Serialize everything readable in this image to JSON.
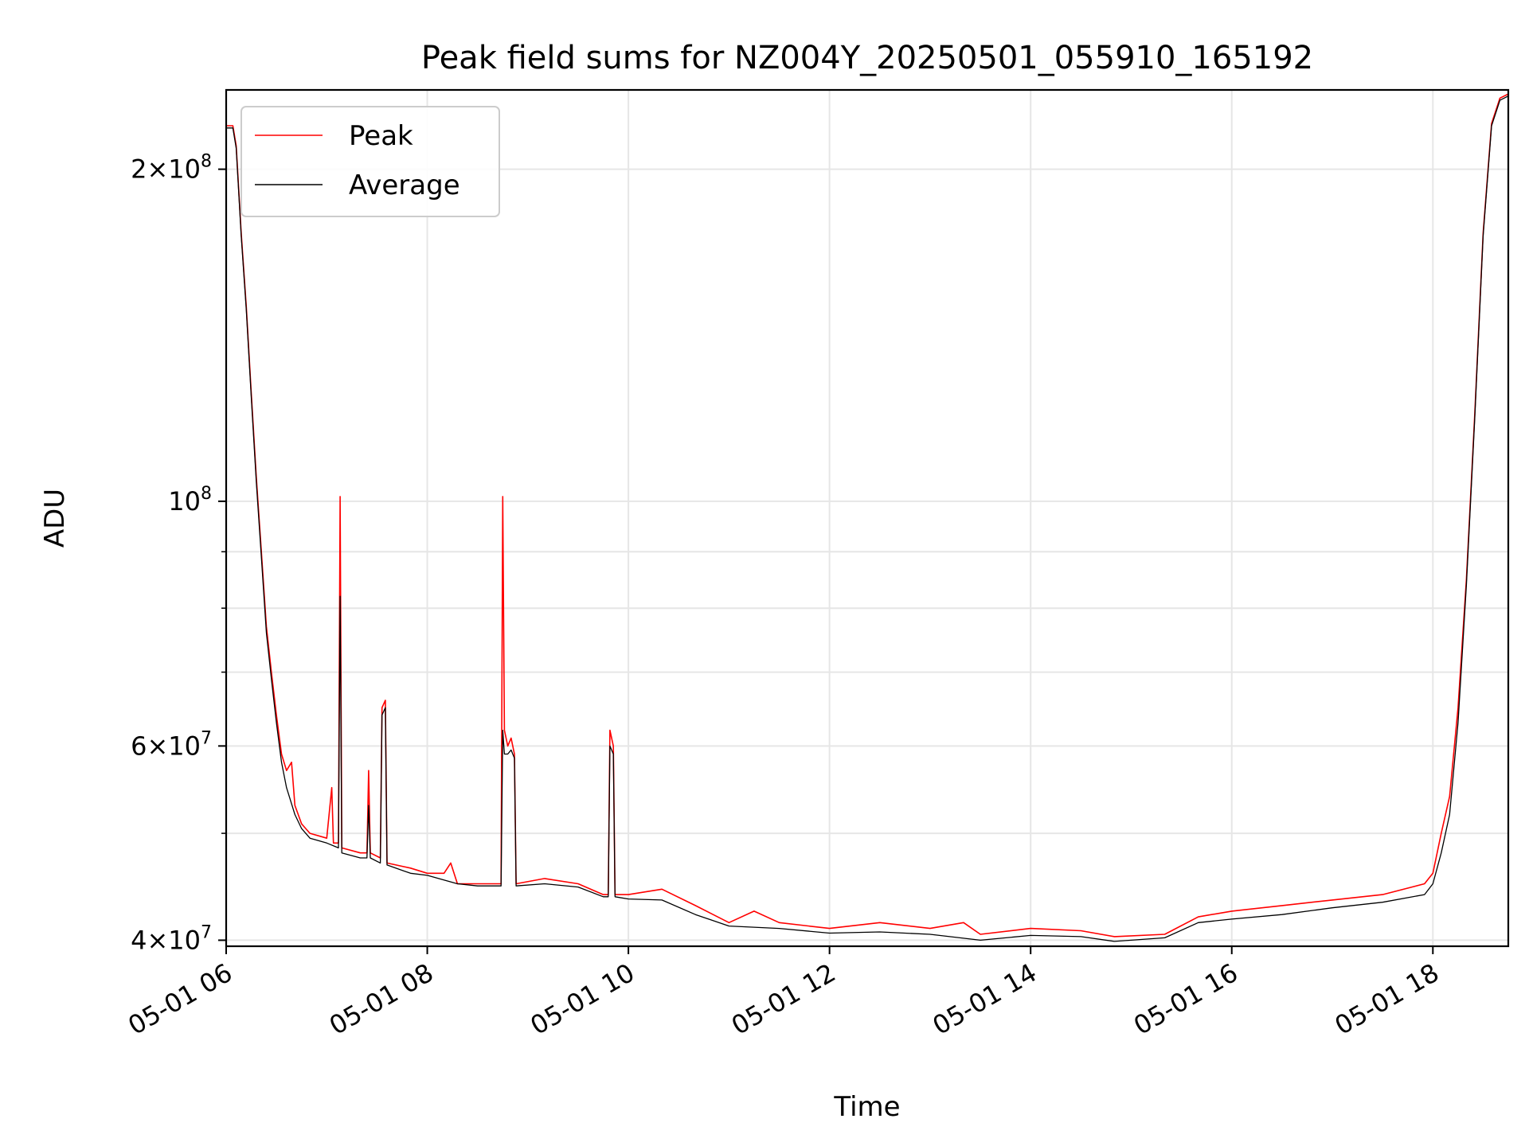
{
  "chart_data": {
    "type": "line",
    "title": "Peak field sums for NZ004Y_20250501_055910_165192",
    "xlabel": "Time",
    "ylabel": "ADU",
    "yscale": "log",
    "xlim": [
      "05-01 06:00",
      "05-01 18:45"
    ],
    "ylim": [
      39500000,
      236000000
    ],
    "grid": true,
    "legend_position": "upper-left",
    "x_ticks": [
      "05-01 06",
      "05-01 08",
      "05-01 10",
      "05-01 12",
      "05-01 14",
      "05-01 16",
      "05-01 18"
    ],
    "y_ticks": [
      {
        "value": 40000000,
        "base": "4",
        "exp": "7"
      },
      {
        "value": 60000000,
        "base": "6",
        "exp": "7"
      },
      {
        "value": 100000000,
        "base": "10",
        "exp": "8"
      },
      {
        "value": 200000000,
        "base": "2",
        "exp": "8"
      }
    ],
    "series": [
      {
        "name": "Peak",
        "color": "#ff0000",
        "points": [
          [
            "05-01 06:00",
            219000000
          ],
          [
            "05-01 06:04",
            219000000
          ],
          [
            "05-01 06:06",
            210000000
          ],
          [
            "05-01 06:09",
            175000000
          ],
          [
            "05-01 06:12",
            150000000
          ],
          [
            "05-01 06:15",
            125000000
          ],
          [
            "05-01 06:18",
            105000000
          ],
          [
            "05-01 06:21",
            90000000
          ],
          [
            "05-01 06:24",
            77000000
          ],
          [
            "05-01 06:27",
            70000000
          ],
          [
            "05-01 06:30",
            64000000
          ],
          [
            "05-01 06:33",
            59000000
          ],
          [
            "05-01 06:36",
            57000000
          ],
          [
            "05-01 06:39",
            58000000
          ],
          [
            "05-01 06:41",
            53000000
          ],
          [
            "05-01 06:45",
            51000000
          ],
          [
            "05-01 06:50",
            50000000
          ],
          [
            "05-01 07:00",
            49500000
          ],
          [
            "05-01 07:03",
            55000000
          ],
          [
            "05-01 07:04",
            49000000
          ],
          [
            "05-01 07:07",
            49000000
          ],
          [
            "05-01 07:08",
            101000000
          ],
          [
            "05-01 07:09",
            48500000
          ],
          [
            "05-01 07:20",
            48000000
          ],
          [
            "05-01 07:24",
            48000000
          ],
          [
            "05-01 07:25",
            57000000
          ],
          [
            "05-01 07:26",
            48000000
          ],
          [
            "05-01 07:32",
            47500000
          ],
          [
            "05-01 07:33",
            65000000
          ],
          [
            "05-01 07:35",
            66000000
          ],
          [
            "05-01 07:36",
            47000000
          ],
          [
            "05-01 07:50",
            46500000
          ],
          [
            "05-01 08:00",
            46000000
          ],
          [
            "05-01 08:10",
            46000000
          ],
          [
            "05-01 08:14",
            47000000
          ],
          [
            "05-01 08:18",
            45000000
          ],
          [
            "05-01 08:30",
            45000000
          ],
          [
            "05-01 08:44",
            45000000
          ],
          [
            "05-01 08:45",
            101000000
          ],
          [
            "05-01 08:46",
            62000000
          ],
          [
            "05-01 08:48",
            60000000
          ],
          [
            "05-01 08:50",
            61000000
          ],
          [
            "05-01 08:52",
            59000000
          ],
          [
            "05-01 08:53",
            45000000
          ],
          [
            "05-01 09:10",
            45500000
          ],
          [
            "05-01 09:30",
            45000000
          ],
          [
            "05-01 09:45",
            44000000
          ],
          [
            "05-01 09:48",
            44000000
          ],
          [
            "05-01 09:49",
            62000000
          ],
          [
            "05-01 09:51",
            60000000
          ],
          [
            "05-01 09:52",
            44000000
          ],
          [
            "05-01 10:00",
            44000000
          ],
          [
            "05-01 10:20",
            44500000
          ],
          [
            "05-01 10:40",
            43000000
          ],
          [
            "05-01 11:00",
            41500000
          ],
          [
            "05-01 11:15",
            42500000
          ],
          [
            "05-01 11:30",
            41500000
          ],
          [
            "05-01 12:00",
            41000000
          ],
          [
            "05-01 12:30",
            41500000
          ],
          [
            "05-01 13:00",
            41000000
          ],
          [
            "05-01 13:20",
            41500000
          ],
          [
            "05-01 13:30",
            40500000
          ],
          [
            "05-01 14:00",
            41000000
          ],
          [
            "05-01 14:30",
            40800000
          ],
          [
            "05-01 14:50",
            40300000
          ],
          [
            "05-01 15:20",
            40500000
          ],
          [
            "05-01 15:40",
            42000000
          ],
          [
            "05-01 16:00",
            42500000
          ],
          [
            "05-01 16:30",
            43000000
          ],
          [
            "05-01 17:00",
            43500000
          ],
          [
            "05-01 17:30",
            44000000
          ],
          [
            "05-01 17:55",
            45000000
          ],
          [
            "05-01 18:00",
            46000000
          ],
          [
            "05-01 18:05",
            50000000
          ],
          [
            "05-01 18:10",
            54000000
          ],
          [
            "05-01 18:15",
            65000000
          ],
          [
            "05-01 18:20",
            85000000
          ],
          [
            "05-01 18:25",
            120000000
          ],
          [
            "05-01 18:30",
            175000000
          ],
          [
            "05-01 18:35",
            220000000
          ],
          [
            "05-01 18:40",
            232000000
          ],
          [
            "05-01 18:45",
            234000000
          ]
        ]
      },
      {
        "name": "Average",
        "color": "#000000",
        "points": [
          [
            "05-01 06:00",
            218000000
          ],
          [
            "05-01 06:04",
            218000000
          ],
          [
            "05-01 06:06",
            209000000
          ],
          [
            "05-01 06:09",
            174000000
          ],
          [
            "05-01 06:12",
            149000000
          ],
          [
            "05-01 06:15",
            124000000
          ],
          [
            "05-01 06:18",
            104000000
          ],
          [
            "05-01 06:21",
            89000000
          ],
          [
            "05-01 06:24",
            76000000
          ],
          [
            "05-01 06:27",
            69000000
          ],
          [
            "05-01 06:30",
            63000000
          ],
          [
            "05-01 06:33",
            58000000
          ],
          [
            "05-01 06:36",
            55000000
          ],
          [
            "05-01 06:41",
            52000000
          ],
          [
            "05-01 06:45",
            50500000
          ],
          [
            "05-01 06:50",
            49500000
          ],
          [
            "05-01 07:00",
            49000000
          ],
          [
            "05-01 07:07",
            48500000
          ],
          [
            "05-01 07:08",
            82000000
          ],
          [
            "05-01 07:09",
            48000000
          ],
          [
            "05-01 07:20",
            47500000
          ],
          [
            "05-01 07:24",
            47500000
          ],
          [
            "05-01 07:25",
            53000000
          ],
          [
            "05-01 07:26",
            47500000
          ],
          [
            "05-01 07:32",
            47000000
          ],
          [
            "05-01 07:33",
            64000000
          ],
          [
            "05-01 07:35",
            65000000
          ],
          [
            "05-01 07:36",
            46800000
          ],
          [
            "05-01 07:50",
            46000000
          ],
          [
            "05-01 08:00",
            45800000
          ],
          [
            "05-01 08:18",
            45000000
          ],
          [
            "05-01 08:30",
            44800000
          ],
          [
            "05-01 08:44",
            44800000
          ],
          [
            "05-01 08:45",
            62000000
          ],
          [
            "05-01 08:46",
            59000000
          ],
          [
            "05-01 08:48",
            59000000
          ],
          [
            "05-01 08:50",
            59500000
          ],
          [
            "05-01 08:52",
            58500000
          ],
          [
            "05-01 08:53",
            44800000
          ],
          [
            "05-01 09:10",
            45000000
          ],
          [
            "05-01 09:30",
            44700000
          ],
          [
            "05-01 09:45",
            43800000
          ],
          [
            "05-01 09:48",
            43800000
          ],
          [
            "05-01 09:49",
            60000000
          ],
          [
            "05-01 09:51",
            59000000
          ],
          [
            "05-01 09:52",
            43800000
          ],
          [
            "05-01 10:00",
            43600000
          ],
          [
            "05-01 10:20",
            43500000
          ],
          [
            "05-01 10:40",
            42200000
          ],
          [
            "05-01 11:00",
            41200000
          ],
          [
            "05-01 11:30",
            41000000
          ],
          [
            "05-01 12:00",
            40600000
          ],
          [
            "05-01 12:30",
            40700000
          ],
          [
            "05-01 13:00",
            40500000
          ],
          [
            "05-01 13:30",
            40000000
          ],
          [
            "05-01 14:00",
            40400000
          ],
          [
            "05-01 14:30",
            40300000
          ],
          [
            "05-01 14:50",
            39900000
          ],
          [
            "05-01 15:20",
            40200000
          ],
          [
            "05-01 15:40",
            41500000
          ],
          [
            "05-01 16:00",
            41800000
          ],
          [
            "05-01 16:30",
            42200000
          ],
          [
            "05-01 17:00",
            42800000
          ],
          [
            "05-01 17:30",
            43300000
          ],
          [
            "05-01 17:55",
            44000000
          ],
          [
            "05-01 18:00",
            45000000
          ],
          [
            "05-01 18:05",
            48000000
          ],
          [
            "05-01 18:10",
            52000000
          ],
          [
            "05-01 18:15",
            63000000
          ],
          [
            "05-01 18:20",
            84000000
          ],
          [
            "05-01 18:25",
            119000000
          ],
          [
            "05-01 18:30",
            174000000
          ],
          [
            "05-01 18:35",
            219000000
          ],
          [
            "05-01 18:40",
            231000000
          ],
          [
            "05-01 18:45",
            233000000
          ]
        ]
      }
    ]
  }
}
